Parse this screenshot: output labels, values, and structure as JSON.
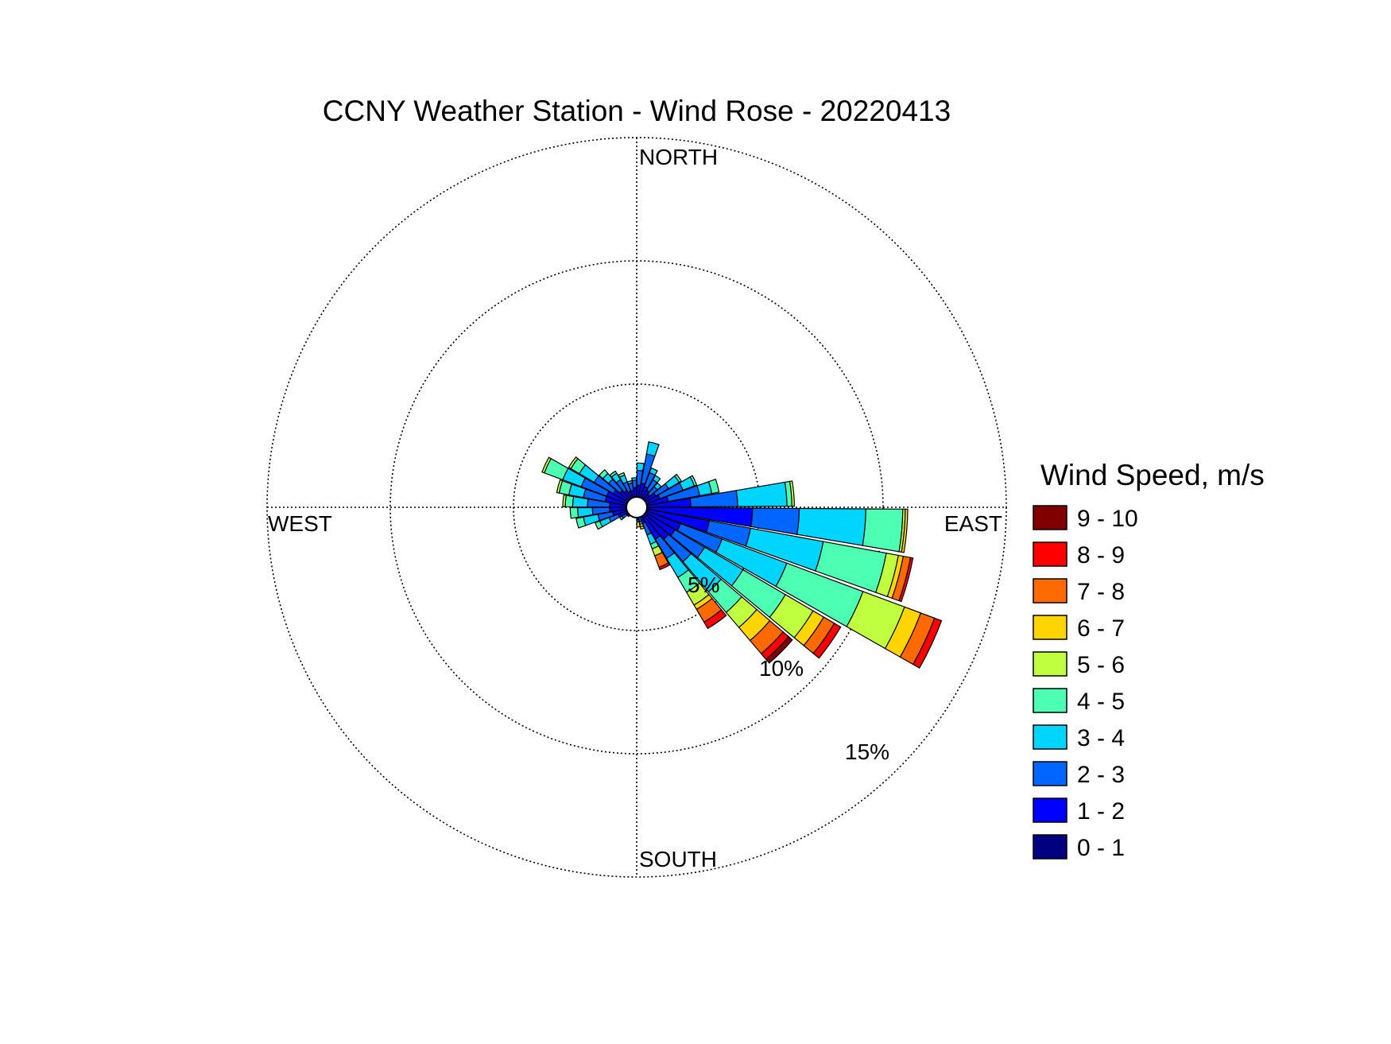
{
  "chart_data": {
    "type": "wind-rose",
    "title": "CCNY Weather Station - Wind Rose - 20220413",
    "directions": {
      "north": "NORTH",
      "east": "EAST",
      "south": "SOUTH",
      "west": "WEST"
    },
    "rings": [
      {
        "value": 5,
        "label": "5%"
      },
      {
        "value": 10,
        "label": "10%"
      },
      {
        "value": 15,
        "label": "15%"
      }
    ],
    "rmax": 15,
    "grid": true,
    "legend": {
      "title": "Wind Speed, m/s",
      "placement": "right",
      "bins": [
        {
          "label": "9 - 10",
          "color": "#800000"
        },
        {
          "label": "8 - 9",
          "color": "#ff0000"
        },
        {
          "label": "7 - 8",
          "color": "#ff6a00"
        },
        {
          "label": "6 - 7",
          "color": "#ffd500"
        },
        {
          "label": "5 - 6",
          "color": "#c0ff40"
        },
        {
          "label": "4 - 5",
          "color": "#4dffb3"
        },
        {
          "label": "3 - 4",
          "color": "#00d5ff"
        },
        {
          "label": "2 - 3",
          "color": "#0066ff"
        },
        {
          "label": "1 - 2",
          "color": "#0000ff"
        },
        {
          "label": "0 - 1",
          "color": "#000080"
        }
      ]
    },
    "bin_order": [
      "0 - 1",
      "1 - 2",
      "2 - 3",
      "3 - 4",
      "4 - 5",
      "5 - 6",
      "6 - 7",
      "7 - 8",
      "8 - 9",
      "9 - 10"
    ],
    "sectors": [
      {
        "dir": 5,
        "values": [
          0.3,
          0.6,
          0.6,
          0.3,
          0.0,
          0,
          0,
          0,
          0,
          0
        ]
      },
      {
        "dir": 15,
        "values": [
          0.3,
          0.7,
          1.2,
          0.5,
          0.0,
          0,
          0,
          0,
          0,
          0
        ]
      },
      {
        "dir": 25,
        "values": [
          0.3,
          0.6,
          0.6,
          0.2,
          0.0,
          0,
          0,
          0,
          0,
          0
        ]
      },
      {
        "dir": 35,
        "values": [
          0.3,
          0.5,
          0.5,
          0.2,
          0.0,
          0,
          0,
          0,
          0,
          0
        ]
      },
      {
        "dir": 45,
        "values": [
          0.3,
          0.4,
          0.4,
          0.2,
          0.0,
          0,
          0,
          0,
          0,
          0
        ]
      },
      {
        "dir": 55,
        "values": [
          0.3,
          0.6,
          0.6,
          0.5,
          0.1,
          0,
          0,
          0,
          0,
          0
        ]
      },
      {
        "dir": 65,
        "values": [
          0.3,
          0.7,
          1.0,
          0.5,
          0.1,
          0,
          0,
          0,
          0,
          0
        ]
      },
      {
        "dir": 75,
        "values": [
          0.3,
          1.0,
          1.3,
          0.5,
          0.3,
          0.0,
          0,
          0,
          0,
          0
        ]
      },
      {
        "dir": 85,
        "values": [
          0.4,
          1.8,
          1.9,
          2.0,
          0.2,
          0.1,
          0,
          0,
          0,
          0
        ]
      },
      {
        "dir": 95,
        "values": [
          0.5,
          4.2,
          1.9,
          2.7,
          1.5,
          0.1,
          0.1,
          0,
          0,
          0
        ]
      },
      {
        "dir": 105,
        "values": [
          0.4,
          2.6,
          1.7,
          3.0,
          2.6,
          0.5,
          0.2,
          0.3,
          0.1,
          0
        ]
      },
      {
        "dir": 115,
        "values": [
          0.4,
          1.5,
          1.8,
          2.8,
          3.3,
          1.8,
          0.7,
          0.6,
          0.3,
          0
        ]
      },
      {
        "dir": 125,
        "values": [
          0.4,
          1.4,
          1.4,
          1.8,
          2.0,
          1.3,
          0.5,
          0.5,
          0.3,
          0
        ]
      },
      {
        "dir": 135,
        "values": [
          0.3,
          1.4,
          1.2,
          1.6,
          1.1,
          0.8,
          0.7,
          0.7,
          0.3,
          0.2
        ]
      },
      {
        "dir": 145,
        "values": [
          0.3,
          1.2,
          0.9,
          0.9,
          0.7,
          0.6,
          0.2,
          0.6,
          0.3,
          0.0
        ]
      },
      {
        "dir": 155,
        "values": [
          0.3,
          0.4,
          0.5,
          0.4,
          0.2,
          0.3,
          0.0,
          0.5,
          0.1,
          0.0
        ]
      },
      {
        "dir": 165,
        "values": [
          0.2,
          0.2,
          0.2,
          0.1,
          0.0,
          0.1,
          0.1,
          0,
          0,
          0
        ]
      },
      {
        "dir": 175,
        "values": [
          0.2,
          0.3,
          0.1,
          0.0,
          0,
          0,
          0.2,
          0,
          0,
          0
        ]
      },
      {
        "dir": 185,
        "values": [
          0.2,
          0.1,
          0.0,
          0,
          0,
          0,
          0,
          0,
          0,
          0
        ]
      },
      {
        "dir": 195,
        "values": [
          0.2,
          0.1,
          0.0,
          0,
          0,
          0,
          0,
          0,
          0,
          0
        ]
      },
      {
        "dir": 205,
        "values": [
          0.2,
          0.1,
          0.0,
          0,
          0,
          0,
          0,
          0,
          0,
          0
        ]
      },
      {
        "dir": 215,
        "values": [
          0.2,
          0.1,
          0.1,
          0.0,
          0,
          0,
          0,
          0,
          0,
          0
        ]
      },
      {
        "dir": 225,
        "values": [
          0.2,
          0.2,
          0.1,
          0.0,
          0,
          0,
          0,
          0,
          0,
          0
        ]
      },
      {
        "dir": 235,
        "values": [
          0.2,
          0.3,
          0.2,
          0.1,
          0.0,
          0,
          0,
          0,
          0,
          0
        ]
      },
      {
        "dir": 245,
        "values": [
          0.3,
          0.5,
          0.4,
          0.4,
          0.2,
          0.0,
          0,
          0,
          0,
          0
        ]
      },
      {
        "dir": 255,
        "values": [
          0.3,
          0.7,
          0.6,
          0.6,
          0.3,
          0.0,
          0,
          0,
          0,
          0
        ]
      },
      {
        "dir": 265,
        "values": [
          0.3,
          0.8,
          0.7,
          0.6,
          0.3,
          0.0,
          0,
          0,
          0,
          0
        ]
      },
      {
        "dir": 275,
        "values": [
          0.3,
          0.8,
          0.9,
          0.6,
          0.3,
          0.1,
          0,
          0,
          0,
          0
        ]
      },
      {
        "dir": 285,
        "values": [
          0.3,
          1.0,
          0.9,
          0.6,
          0.4,
          0.1,
          0,
          0,
          0,
          0
        ]
      },
      {
        "dir": 295,
        "values": [
          0.3,
          1.0,
          1.1,
          0.8,
          0.8,
          0.1,
          0,
          0,
          0,
          0
        ]
      },
      {
        "dir": 305,
        "values": [
          0.3,
          0.8,
          0.9,
          0.7,
          0.4,
          0.1,
          0,
          0,
          0,
          0
        ]
      },
      {
        "dir": 315,
        "values": [
          0.3,
          0.6,
          0.6,
          0.3,
          0.2,
          0.0,
          0,
          0,
          0,
          0
        ]
      },
      {
        "dir": 325,
        "values": [
          0.3,
          0.5,
          0.5,
          0.3,
          0.1,
          0,
          0,
          0,
          0,
          0
        ]
      },
      {
        "dir": 335,
        "values": [
          0.3,
          0.4,
          0.4,
          0.3,
          0.1,
          0,
          0,
          0,
          0,
          0
        ]
      },
      {
        "dir": 345,
        "values": [
          0.3,
          0.4,
          0.3,
          0.1,
          0.0,
          0,
          0,
          0,
          0,
          0
        ]
      },
      {
        "dir": 355,
        "values": [
          0.3,
          0.5,
          0.3,
          0.1,
          0.0,
          0,
          0,
          0,
          0,
          0
        ]
      }
    ]
  }
}
